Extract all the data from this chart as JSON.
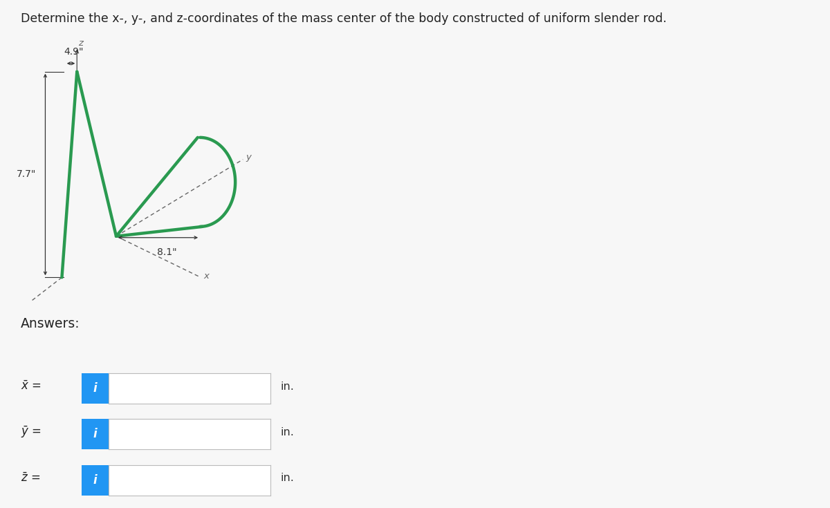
{
  "title": "Determine the x-, y-, and z-coordinates of the mass center of the body constructed of uniform slender rod.",
  "title_fontsize": 12.5,
  "dim_49": "4.9\"",
  "dim_77": "7.7\"",
  "dim_81": "8.1\"",
  "rod_color": "#2a9a50",
  "rod_lw": 3.2,
  "dim_color": "#333333",
  "axis_color": "#666666",
  "bg_color": "#f7f7f7",
  "white": "#ffffff",
  "info_btn_color": "#2196F3",
  "box_border_color": "#bbbbbb",
  "answers_label": "Answers:",
  "x_label": "$\\bar{x}$ =",
  "y_label": "$\\bar{y}$ =",
  "z_label": "$\\bar{z}$ =",
  "unit_label": "in."
}
